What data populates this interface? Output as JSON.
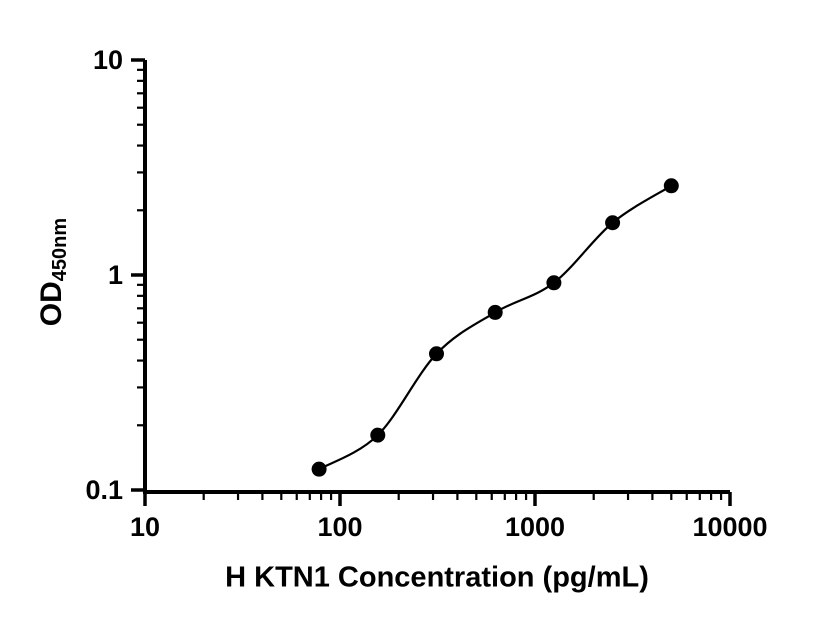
{
  "chart": {
    "xlabel": "H KTN1 Concentration (pg/mL)",
    "ylabel_main": "OD",
    "ylabel_sub": "450nm"
  },
  "chart_data": {
    "type": "scatter",
    "title": "",
    "xlabel": "H KTN1 Concentration (pg/mL)",
    "ylabel": "OD450nm",
    "x_scale": "log",
    "y_scale": "log",
    "xlim": [
      10,
      10000
    ],
    "ylim": [
      0.1,
      10
    ],
    "x_ticks": [
      10,
      100,
      1000,
      10000
    ],
    "x_tick_labels": [
      "10",
      "100",
      "1000",
      "10000"
    ],
    "y_ticks": [
      0.1,
      1,
      10
    ],
    "y_tick_labels": [
      "0.1",
      "1",
      "10"
    ],
    "x": [
      78.125,
      156.25,
      312.5,
      625,
      1250,
      2500,
      5000
    ],
    "y": [
      0.125,
      0.18,
      0.43,
      0.67,
      0.92,
      1.75,
      2.6
    ],
    "fit_line": true,
    "grid": false,
    "legend": false,
    "marker_color": "#000000",
    "line_color": "#000000",
    "axis_color": "#000000"
  }
}
